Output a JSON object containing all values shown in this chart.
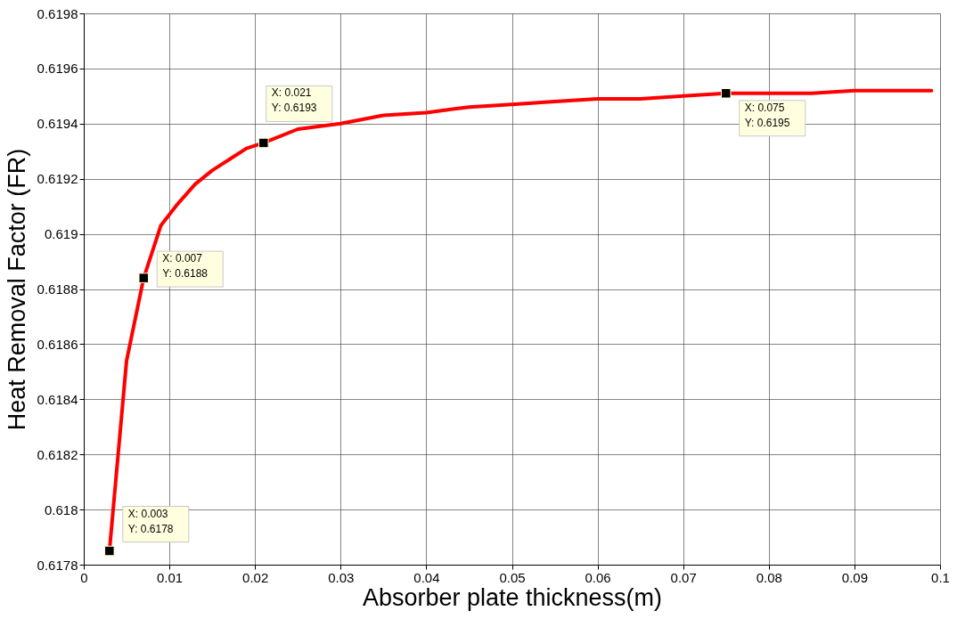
{
  "chart_data": {
    "type": "line",
    "xlabel": "Absorber plate thickness(m)",
    "ylabel": "Heat Removal Factor (FR)",
    "x": [
      0.003,
      0.005,
      0.007,
      0.009,
      0.011,
      0.013,
      0.015,
      0.017,
      0.019,
      0.021,
      0.025,
      0.03,
      0.035,
      0.04,
      0.045,
      0.05,
      0.055,
      0.06,
      0.065,
      0.07,
      0.075,
      0.08,
      0.085,
      0.09,
      0.095,
      0.099
    ],
    "series": [
      {
        "type": "line",
        "color": "#ff0000",
        "marker": "none",
        "line_style": "solid",
        "values": [
          0.61785,
          0.61854,
          0.61884,
          0.61903,
          0.61911,
          0.61918,
          0.61923,
          0.61927,
          0.61931,
          0.61933,
          0.61938,
          0.6194,
          0.61943,
          0.61944,
          0.61946,
          0.61947,
          0.61948,
          0.61949,
          0.61949,
          0.6195,
          0.61951,
          0.61951,
          0.61951,
          0.61952,
          0.61952,
          0.61952
        ]
      },
      {
        "type": "scatter",
        "color": "#000000",
        "marker": "square",
        "x": [
          0.003,
          0.007,
          0.021,
          0.075
        ],
        "values": [
          0.61785,
          0.61884,
          0.61933,
          0.61951
        ]
      }
    ],
    "annotations": [
      {
        "text": "X: 0.003\nY: 0.6178",
        "x": 0.003,
        "y": 0.61785
      },
      {
        "text": "X: 0.007\nY: 0.6188",
        "x": 0.007,
        "y": 0.61884
      },
      {
        "text": "X: 0.021\nY: 0.6193",
        "x": 0.021,
        "y": 0.61933
      },
      {
        "text": "X: 0.075\nY: 0.6195",
        "x": 0.075,
        "y": 0.61951
      }
    ],
    "xlim": [
      0,
      0.1
    ],
    "xticks": [
      0,
      0.01,
      0.02,
      0.03,
      0.04,
      0.05,
      0.06,
      0.07,
      0.08,
      0.09,
      0.1
    ],
    "ylim": [
      0.6178,
      0.6198
    ],
    "yticks": [
      0.6178,
      0.618,
      0.6182,
      0.6184,
      0.6186,
      0.6188,
      0.619,
      0.6192,
      0.6194,
      0.6196,
      0.6198
    ],
    "grid": true
  }
}
